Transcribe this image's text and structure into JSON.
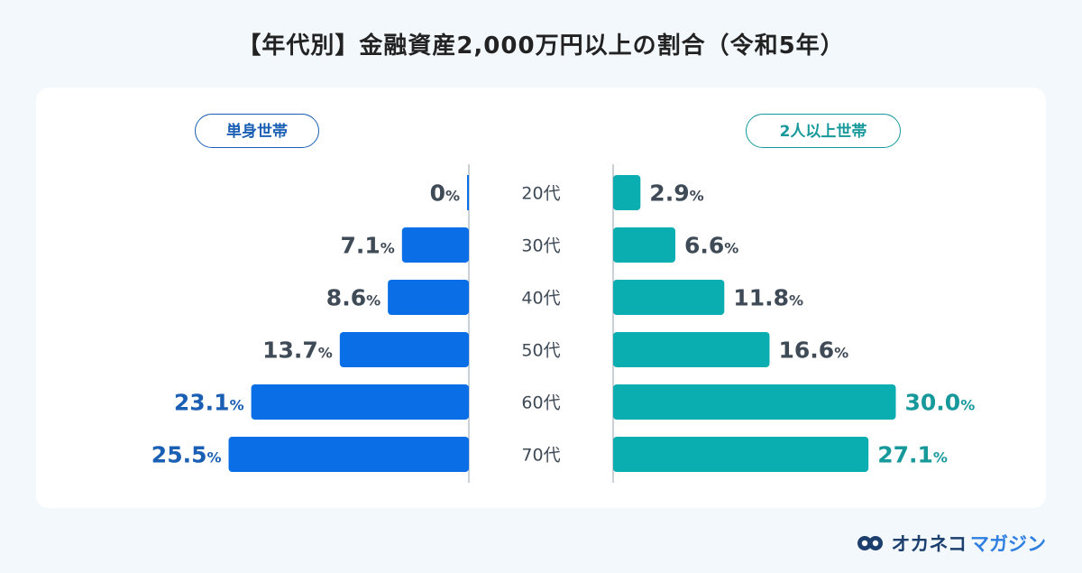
{
  "title": "【年代別】金融資産2,000万円以上の割合（令和5年）",
  "legend": {
    "left": "単身世帯",
    "right": "2人以上世帯"
  },
  "colors": {
    "single": "#0a6ee6",
    "multi": "#0aadb0",
    "single_label": "#1a5fb4",
    "multi_label": "#17999b",
    "normal_label": "#3f4a57",
    "axis": "#9aa3ad"
  },
  "logo": {
    "text_a": "オカネコ",
    "text_b": "マガジン"
  },
  "chart_data": {
    "type": "bar",
    "orientation": "horizontal-butterfly",
    "categories": [
      "20代",
      "30代",
      "40代",
      "50代",
      "60代",
      "70代"
    ],
    "unit": "%",
    "series": [
      {
        "name": "単身世帯",
        "values": [
          0,
          7.1,
          8.6,
          13.7,
          23.1,
          25.5
        ],
        "labels": [
          "0",
          "7.1",
          "8.6",
          "13.7",
          "23.1",
          "25.5"
        ]
      },
      {
        "name": "2人以上世帯",
        "values": [
          2.9,
          6.6,
          11.8,
          16.6,
          30.0,
          27.1
        ],
        "labels": [
          "2.9",
          "6.6",
          "11.8",
          "16.6",
          "30.0",
          "27.1"
        ]
      }
    ],
    "highlight_categories": [
      "60代",
      "70代"
    ]
  }
}
